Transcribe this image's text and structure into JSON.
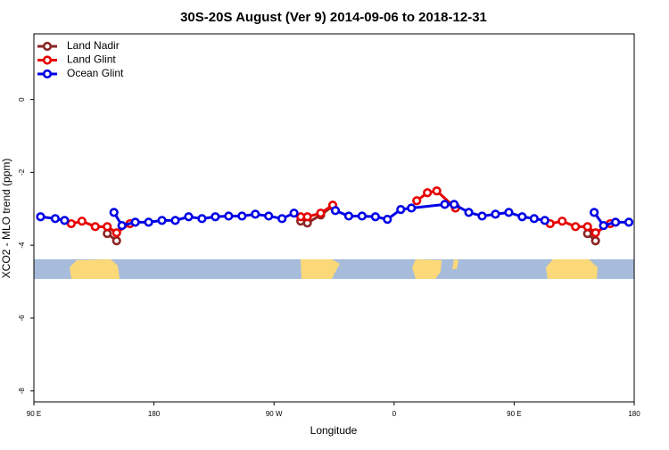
{
  "chart_data": {
    "type": "line",
    "title": "30S-20S August (Ver 9)   2014-09-06 to 2018-12-31",
    "x_label": "Longitude",
    "y_label": "XCO2 - MLO trend (ppm)",
    "xlim": [
      90,
      540
    ],
    "ylim": [
      -8.3,
      1.8
    ],
    "xticks": [
      {
        "value": 90,
        "label": "90 E"
      },
      180,
      {
        "value": 270,
        "label": "90 W"
      },
      {
        "value": 360,
        "label": "0"
      },
      {
        "value": 450,
        "label": "90 E"
      },
      {
        "value": 540,
        "label": "180"
      }
    ],
    "yticks": [
      0,
      -2,
      -4,
      -6,
      -8
    ],
    "legend": "top-left",
    "series": [
      {
        "name": "Land Nadir",
        "color": "#8b2525",
        "x": [
          145,
          152,
          null,
          290,
          295,
          305,
          314,
          null,
          406,
          null,
          505,
          511
        ],
        "values": [
          -3.68,
          -3.88,
          null,
          -3.34,
          -3.39,
          -3.17,
          -2.93,
          null,
          -2.95,
          null,
          -3.68,
          -3.88
        ]
      },
      {
        "name": "Land Glint",
        "color": "#e60000",
        "x": [
          118,
          126,
          136,
          145,
          152,
          162,
          null,
          290,
          295,
          305,
          314,
          null,
          377,
          385,
          392,
          406,
          null,
          477,
          486,
          496,
          505,
          511,
          522
        ],
        "values": [
          -3.41,
          -3.34,
          -3.49,
          -3.49,
          -3.66,
          -3.41,
          null,
          -3.22,
          -3.22,
          -3.12,
          -2.9,
          null,
          -2.78,
          -2.56,
          -2.51,
          -2.98,
          null,
          -3.41,
          -3.34,
          -3.49,
          -3.49,
          -3.66,
          -3.41
        ]
      },
      {
        "name": "Ocean Glint",
        "color": "#0000e6",
        "x": [
          95,
          106,
          113,
          null,
          150,
          156,
          166,
          176,
          186,
          196,
          206,
          216,
          226,
          236,
          246,
          256,
          266,
          276,
          285,
          null,
          316,
          326,
          336,
          346,
          355,
          365,
          373,
          398,
          405,
          416,
          426,
          436,
          446,
          456,
          465,
          473,
          null,
          510,
          517,
          526,
          536
        ],
        "values": [
          -3.22,
          -3.27,
          -3.32,
          null,
          -3.1,
          -3.46,
          -3.37,
          -3.37,
          -3.32,
          -3.32,
          -3.22,
          -3.27,
          -3.22,
          -3.2,
          -3.2,
          -3.15,
          -3.2,
          -3.27,
          -3.12,
          null,
          -3.05,
          -3.2,
          -3.2,
          -3.22,
          -3.29,
          -3.02,
          -2.98,
          -2.88,
          -2.88,
          -3.1,
          -3.2,
          -3.15,
          -3.1,
          -3.22,
          -3.27,
          -3.32,
          null,
          -3.1,
          -3.46,
          -3.37,
          -3.37
        ]
      }
    ]
  }
}
